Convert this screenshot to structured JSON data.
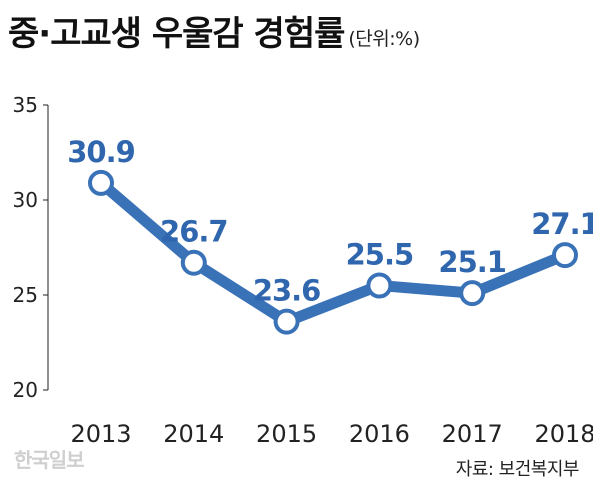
{
  "title": "중·고교생 우울감 경험률",
  "unit": "(단위:%)",
  "source": "자료: 보건복지부",
  "watermark": "한국일보",
  "colors": {
    "line": "#3a72b8",
    "label": "#2f66ad",
    "axis": "#222222"
  },
  "chart_data": {
    "type": "line",
    "categories": [
      "2013",
      "2014",
      "2015",
      "2016",
      "2017",
      "2018"
    ],
    "series": [
      {
        "values": [
          30.9,
          26.7,
          23.6,
          25.5,
          25.1,
          27.1
        ]
      }
    ],
    "data_labels": [
      "30.9",
      "26.7",
      "23.6",
      "25.5",
      "25.1",
      "27.1"
    ],
    "yticks": [
      20,
      25,
      30,
      35
    ],
    "ylim": [
      20,
      35
    ],
    "grid": false
  }
}
